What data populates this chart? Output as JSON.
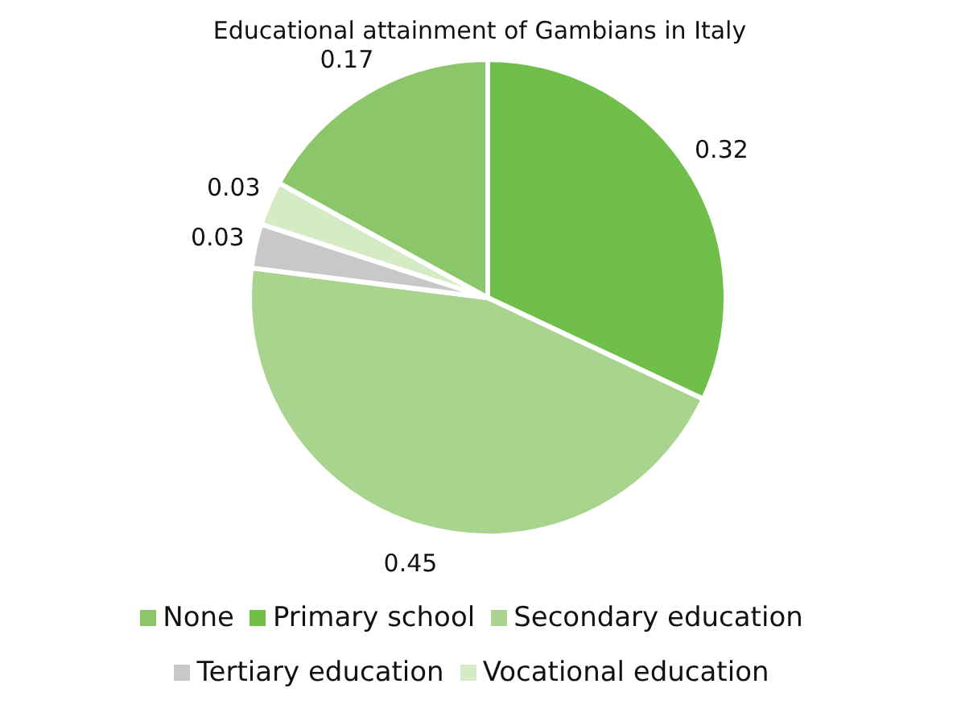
{
  "chart_data": {
    "type": "pie",
    "title": "Educational attainment of Gambians in Italy",
    "categories": [
      "Primary school",
      "Secondary education",
      "Tertiary education",
      "Vocational education",
      "None"
    ],
    "values": [
      0.32,
      0.45,
      0.03,
      0.03,
      0.17
    ],
    "colors": [
      "#70bf4a",
      "#a9d48e",
      "#c8c8c8",
      "#d5ebc6",
      "#8cc66a"
    ],
    "data_labels": true,
    "legend": "bottom"
  }
}
